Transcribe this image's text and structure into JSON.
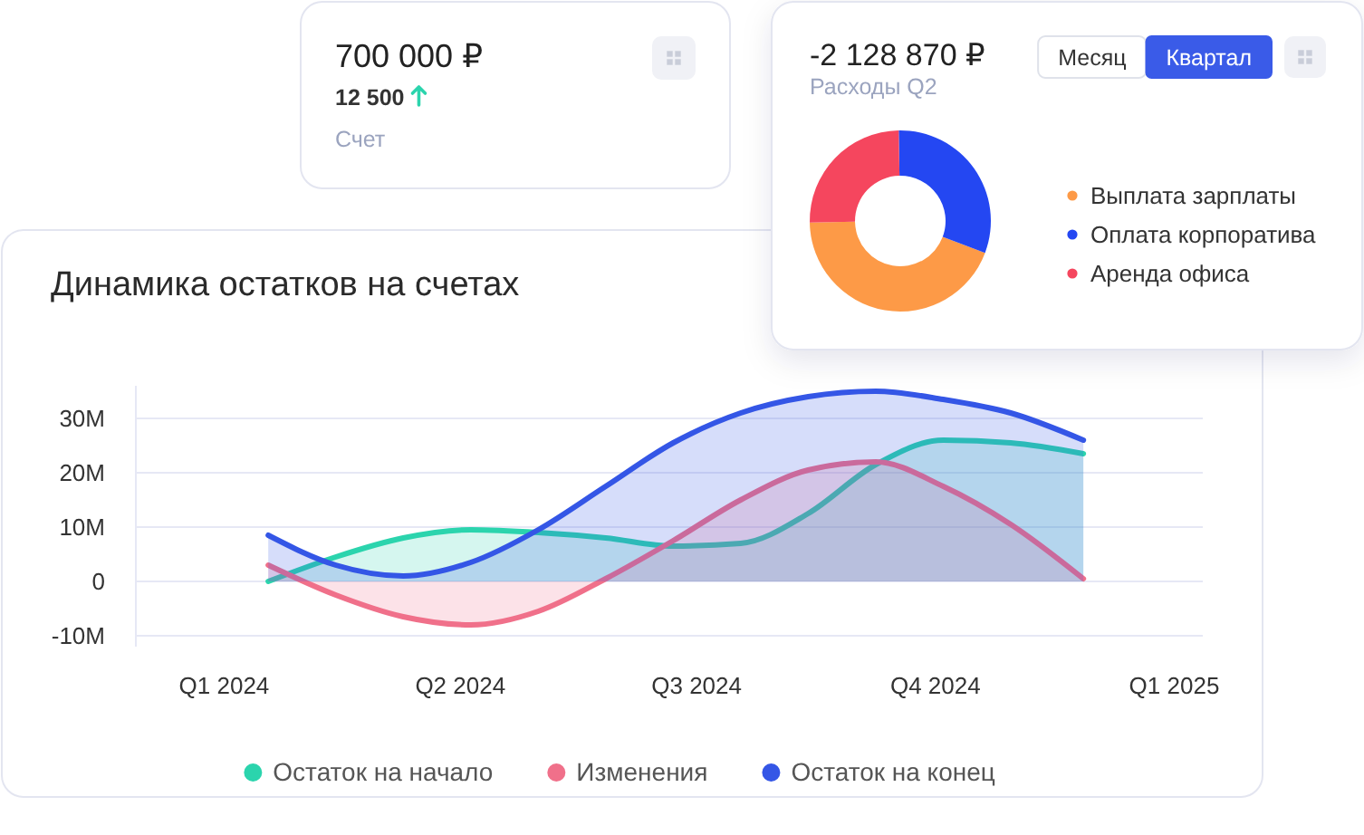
{
  "chart_data": [
    {
      "type": "other",
      "title": "700 000 ₽",
      "annotations": [
        "12 500",
        "Счет"
      ]
    },
    {
      "type": "donut",
      "title": "-2 128 870 ₽",
      "subtitle": "Расходы Q2",
      "annotations": [
        "Месяц",
        "Квартал"
      ],
      "categories": [
        "Выплата зарплаты",
        "Оплата корпоратива",
        "Аренда офиса"
      ],
      "values": [
        44,
        31,
        25
      ],
      "colors": [
        "#fd9a47",
        "#2447f2",
        "#f5465e"
      ],
      "legend": "right"
    },
    {
      "type": "area",
      "title": "Динамика остатков на счетах",
      "x": [
        "2024-01-18",
        "2024-02-13",
        "2024-03-10",
        "2024-04-05",
        "2024-05-01",
        "2024-05-27",
        "2024-06-22",
        "2024-07-18",
        "2024-08-13",
        "2024-09-08",
        "2024-10-04",
        "2024-10-30",
        "2024-11-27"
      ],
      "series": [
        {
          "name": "Остаток на начало",
          "color": "#2bd4ad",
          "values": [
            0,
            4.5,
            8,
            9.5,
            9,
            8,
            6.5,
            7,
            12.5,
            21.5,
            26,
            25.5,
            23.5
          ]
        },
        {
          "name": "Изменения",
          "color": "#f0708a",
          "values": [
            3,
            -2.5,
            -6.5,
            -8,
            -5.5,
            0.5,
            7.5,
            15,
            20.5,
            22,
            17.5,
            10.5,
            0.5
          ]
        },
        {
          "name": "Остаток на конец",
          "color": "#3456e6",
          "values": [
            8.5,
            3,
            1,
            3.5,
            9.5,
            17.5,
            25.5,
            31,
            34,
            35,
            33.5,
            31,
            26
          ]
        }
      ],
      "xlim": [
        "2023-11-28",
        "2025-01-12"
      ],
      "xticks": [
        {
          "value": "2024-01-01",
          "label": "Q1 2024"
        },
        {
          "value": "2024-04-01",
          "label": "Q2 2024"
        },
        {
          "value": "2024-07-01",
          "label": "Q3 2024"
        },
        {
          "value": "2024-10-01",
          "label": "Q4 2024"
        },
        {
          "value": "2025-01-01",
          "label": "Q1 2025"
        }
      ],
      "ylim": [
        -12,
        36
      ],
      "yticks": [
        {
          "value": -10,
          "label": "-10M"
        },
        0,
        {
          "value": 10,
          "label": "10M"
        },
        {
          "value": 20,
          "label": "20M"
        },
        {
          "value": 30,
          "label": "30M"
        }
      ],
      "grid": "y",
      "legend": "bottom"
    }
  ]
}
